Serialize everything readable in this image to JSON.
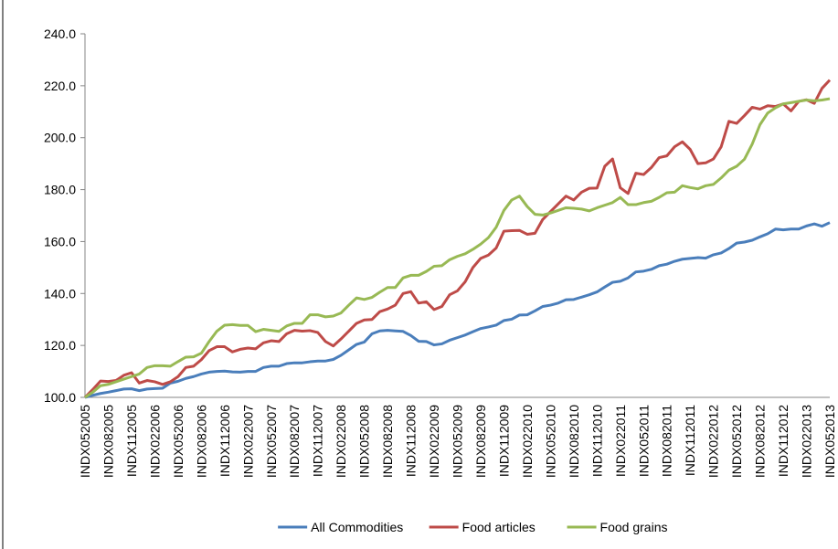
{
  "chart_data": {
    "type": "line",
    "categories": [
      "INDX052005",
      null,
      null,
      "INDX082005",
      null,
      null,
      "INDX112005",
      null,
      null,
      "INDX022006",
      null,
      null,
      "INDX052006",
      null,
      null,
      "INDX082006",
      null,
      null,
      "INDX112006",
      null,
      null,
      "INDX022007",
      null,
      null,
      "INDX052007",
      null,
      null,
      "INDX082007",
      null,
      null,
      "INDX112007",
      null,
      null,
      "INDX022008",
      null,
      null,
      "INDX052008",
      null,
      null,
      "INDX082008",
      null,
      null,
      "INDX112008",
      null,
      null,
      "INDX022009",
      null,
      null,
      "INDX052009",
      null,
      null,
      "INDX082009",
      null,
      null,
      "INDX112009",
      null,
      null,
      "INDX022010",
      null,
      null,
      "INDX052010",
      null,
      null,
      "INDX082010",
      null,
      null,
      "INDX112010",
      null,
      null,
      "INDX022011",
      null,
      null,
      "INDX052011",
      null,
      null,
      "INDX082011",
      null,
      null,
      "INDX112011",
      null,
      null,
      "INDX022012",
      null,
      null,
      "INDX052012",
      null,
      null,
      "INDX082012",
      null,
      null,
      "INDX112012",
      null,
      null,
      "INDX022013",
      null,
      null,
      "INDX052013"
    ],
    "series": [
      {
        "name": "All Commodities",
        "color": "#4a7ebb",
        "values": [
          100,
          100.8,
          101.5,
          102,
          102.6,
          103.2,
          103.3,
          102.6,
          103.2,
          103.4,
          103.5,
          105.5,
          106.2,
          107.3,
          108,
          109,
          109.7,
          110,
          110.1,
          109.8,
          109.7,
          110,
          110,
          111.5,
          112,
          112,
          113,
          113.3,
          113.3,
          113.7,
          114,
          114,
          114.6,
          116.2,
          118.3,
          120.4,
          121.3,
          124.5,
          125.6,
          125.8,
          125.6,
          125.4,
          123.8,
          121.6,
          121.5,
          120.2,
          120.6,
          122,
          123,
          124,
          125.3,
          126.5,
          127.1,
          127.8,
          129.6,
          130.1,
          131.7,
          131.8,
          133.3,
          135,
          135.5,
          136.3,
          137.6,
          137.7,
          138.6,
          139.5,
          140.6,
          142.5,
          144.3,
          144.7,
          146,
          148.3,
          148.6,
          149.3,
          150.7,
          151.3,
          152.4,
          153.2,
          153.5,
          153.8,
          153.6,
          154.9,
          155.6,
          157.3,
          159.4,
          159.8,
          160.5,
          161.8,
          163,
          164.8,
          164.5,
          164.8,
          164.8,
          166,
          166.8,
          165.9,
          167.3
        ]
      },
      {
        "name": "Food articles",
        "color": "#be4b48",
        "values": [
          100,
          103,
          106.3,
          106.1,
          106.5,
          108.5,
          109.5,
          105.5,
          106.5,
          106,
          105,
          106,
          108,
          111.5,
          112,
          114.5,
          118,
          119.5,
          119.5,
          117.5,
          118.5,
          119,
          118.7,
          121,
          121.8,
          121.5,
          124.5,
          125.8,
          125.5,
          125.7,
          125,
          121.5,
          119.8,
          122.5,
          125.5,
          128.5,
          129.8,
          130,
          133,
          134,
          135.5,
          140,
          140.7,
          136.3,
          136.8,
          133.8,
          135,
          139.5,
          141,
          144.5,
          150,
          153.5,
          154.8,
          157.5,
          164,
          164.2,
          164.3,
          162.8,
          163.2,
          168.5,
          171.5,
          174.5,
          177.5,
          176,
          179,
          180.5,
          180.6,
          189,
          191.8,
          180.7,
          178.5,
          186.3,
          185.8,
          188.5,
          192.3,
          193,
          196.5,
          198.4,
          195.5,
          190,
          190.3,
          191.8,
          196.5,
          206.3,
          205.5,
          208.5,
          211.7,
          211,
          212.3,
          212,
          213,
          210.3,
          214,
          214.6,
          213.2,
          219,
          222.2
        ]
      },
      {
        "name": "Food grains",
        "color": "#98b954",
        "values": [
          100,
          102,
          104.5,
          105,
          106,
          107,
          108,
          109,
          111.5,
          112.2,
          112.2,
          112,
          113.8,
          115.5,
          115.6,
          117,
          121.5,
          125.5,
          127.8,
          128,
          127.7,
          127.7,
          125.3,
          126.2,
          125.8,
          125.4,
          127.5,
          128.5,
          128.5,
          131.8,
          131.8,
          131,
          131.3,
          132.5,
          135.5,
          138.3,
          137.7,
          138.5,
          140.5,
          142.3,
          142.3,
          146,
          147,
          147,
          148.5,
          150.5,
          150.7,
          153,
          154.3,
          155.3,
          157,
          159,
          161.5,
          165.5,
          172,
          176,
          177.5,
          173.5,
          170.5,
          170.2,
          171,
          172,
          173,
          172.8,
          172.5,
          171.8,
          173,
          174,
          175,
          177,
          174.2,
          174.2,
          175,
          175.5,
          177,
          178.8,
          179,
          181.5,
          180.8,
          180.3,
          181.5,
          182,
          184.5,
          187.5,
          189,
          191.7,
          197.5,
          205,
          209.5,
          211.5,
          213,
          213.5,
          214,
          214.5,
          214.2,
          214.5,
          215
        ]
      }
    ],
    "ylim": [
      100,
      240
    ],
    "yticks": [
      {
        "value": 100,
        "label": "100.0"
      },
      {
        "value": 120,
        "label": "120.0"
      },
      {
        "value": 140,
        "label": "140.0"
      },
      {
        "value": 160,
        "label": "160.0"
      },
      {
        "value": 180,
        "label": "180.0"
      },
      {
        "value": 200,
        "label": "200.0"
      },
      {
        "value": 220,
        "label": "220.0"
      },
      {
        "value": 240,
        "label": "240.0"
      }
    ],
    "legend": "bottom"
  }
}
